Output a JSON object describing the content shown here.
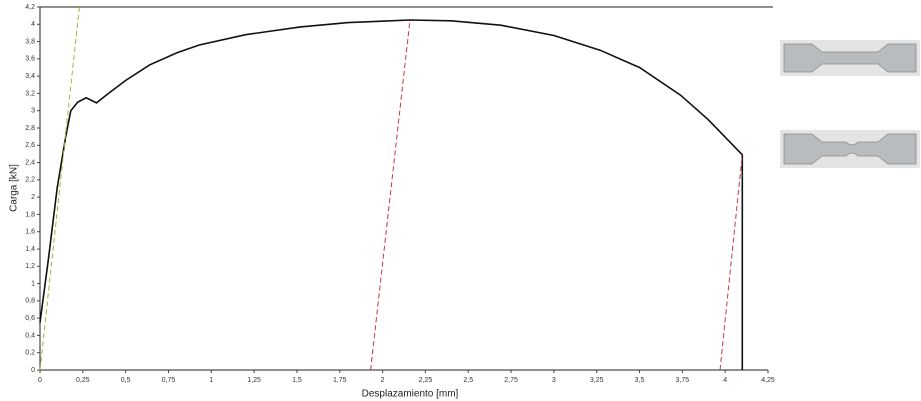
{
  "chart_data": {
    "type": "line",
    "xlabel": "Desplazamiento [mm]",
    "ylabel": "Carga [kN]",
    "xlim": [
      0,
      4.25
    ],
    "ylim": [
      0,
      4.2
    ],
    "xticks": [
      0,
      {
        "value": 0.25,
        "label": "0,25"
      },
      {
        "value": 0.5,
        "label": "0,5"
      },
      {
        "value": 0.75,
        "label": "0,75"
      },
      1,
      {
        "value": 1.25,
        "label": "1,25"
      },
      {
        "value": 1.5,
        "label": "1,5"
      },
      {
        "value": 1.75,
        "label": "1,75"
      },
      2,
      {
        "value": 2.25,
        "label": "2,25"
      },
      {
        "value": 2.5,
        "label": "2,5"
      },
      {
        "value": 2.75,
        "label": "2,75"
      },
      3,
      {
        "value": 3.25,
        "label": "3,25"
      },
      {
        "value": 3.5,
        "label": "3,5"
      },
      {
        "value": 3.75,
        "label": "3,75"
      },
      4,
      {
        "value": 4.25,
        "label": "4,25"
      }
    ],
    "yticks": [
      0,
      {
        "value": 0.2,
        "label": "0,2"
      },
      {
        "value": 0.4,
        "label": "0,4"
      },
      {
        "value": 0.6,
        "label": "0,6"
      },
      {
        "value": 0.8,
        "label": "0,8"
      },
      1,
      {
        "value": 1.2,
        "label": "1,2"
      },
      {
        "value": 1.4,
        "label": "1,4"
      },
      {
        "value": 1.6,
        "label": "1,6"
      },
      {
        "value": 1.8,
        "label": "1,8"
      },
      2,
      {
        "value": 2.2,
        "label": "2,2"
      },
      {
        "value": 2.4,
        "label": "2,4"
      },
      {
        "value": 2.6,
        "label": "2,6"
      },
      {
        "value": 2.8,
        "label": "2,8"
      },
      3,
      {
        "value": 3.2,
        "label": "3,2"
      },
      {
        "value": 3.4,
        "label": "3,4"
      },
      {
        "value": 3.6,
        "label": "3,6"
      },
      {
        "value": 3.8,
        "label": "3,8"
      },
      4,
      {
        "value": 4.2,
        "label": "4,2"
      }
    ],
    "series": [
      {
        "color": "#111111",
        "dashed": false,
        "x": [
          0,
          0.05,
          0.1,
          0.15,
          0.18,
          0.22,
          0.27,
          0.33,
          0.4,
          0.5,
          0.64,
          0.8,
          0.93,
          1.2,
          1.52,
          1.8,
          2.16,
          2.4,
          2.69,
          3.0,
          3.27,
          3.5,
          3.74,
          3.9,
          4.1,
          4.1
        ],
        "values": [
          0.55,
          1.3,
          2.1,
          2.7,
          3.0,
          3.1,
          3.15,
          3.09,
          3.2,
          3.35,
          3.53,
          3.67,
          3.76,
          3.88,
          3.97,
          4.02,
          4.05,
          4.04,
          3.99,
          3.87,
          3.7,
          3.5,
          3.18,
          2.9,
          2.49,
          0
        ]
      },
      {
        "color": "#99bb33",
        "dashed": true,
        "x": [
          0,
          0.23
        ],
        "values": [
          0,
          4.2
        ]
      },
      {
        "color": "#cc3344",
        "dashed": true,
        "x": [
          1.93,
          2.16
        ],
        "values": [
          0,
          4.05
        ]
      },
      {
        "color": "#cc3344",
        "dashed": true,
        "x": [
          3.97,
          4.1
        ],
        "values": [
          0,
          2.49
        ]
      }
    ]
  }
}
